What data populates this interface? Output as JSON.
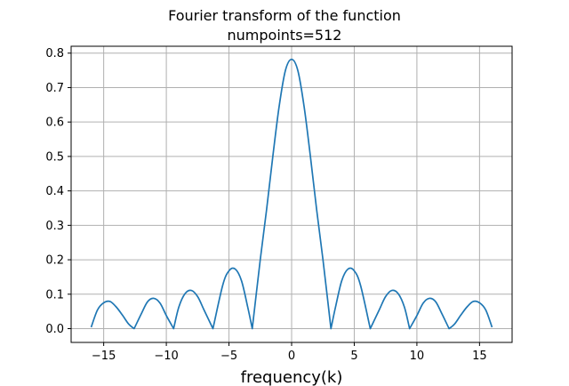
{
  "chart_data": {
    "type": "line",
    "title": "Fourier transform of the function",
    "subtitle": "numpoints=512",
    "xlabel": "frequency(k)",
    "ylabel": "",
    "xlim": [
      -17.6,
      17.6
    ],
    "ylim": [
      -0.04,
      0.82
    ],
    "xticks": [
      -15,
      -10,
      -5,
      0,
      5,
      10,
      15
    ],
    "xtick_labels": [
      "−15",
      "−10",
      "−5",
      "0",
      "5",
      "10",
      "15"
    ],
    "yticks": [
      0.0,
      0.1,
      0.2,
      0.3,
      0.4,
      0.5,
      0.6,
      0.7,
      0.8
    ],
    "ytick_labels": [
      "0.0",
      "0.1",
      "0.2",
      "0.3",
      "0.4",
      "0.5",
      "0.6",
      "0.7",
      "0.8"
    ],
    "grid": true,
    "line_color": "#1f77b4",
    "series": [
      {
        "x": [
          -16.0,
          -15.5,
          -15.0,
          -14.5,
          -14.0,
          -13.5,
          -13.0,
          -12.57,
          -12.0,
          -11.5,
          -11.0,
          -10.5,
          -10.0,
          -9.42,
          -9.0,
          -8.5,
          -8.0,
          -7.5,
          -7.0,
          -6.28,
          -5.5,
          -5.0,
          -4.5,
          -4.0,
          -3.5,
          -3.14,
          -2.5,
          -2.0,
          -1.5,
          -1.0,
          -0.5,
          0.0,
          0.5,
          1.0,
          1.5,
          2.0,
          2.5,
          3.14,
          3.5,
          4.0,
          4.5,
          5.0,
          5.5,
          6.28,
          7.0,
          7.5,
          8.0,
          8.5,
          9.0,
          9.42,
          10.0,
          10.5,
          11.0,
          11.5,
          12.0,
          12.57,
          13.0,
          13.5,
          14.0,
          14.5,
          15.0,
          15.5,
          16.0
        ],
        "y": [
          0.004,
          0.054,
          0.075,
          0.079,
          0.063,
          0.039,
          0.013,
          0.0,
          0.043,
          0.078,
          0.088,
          0.074,
          0.038,
          0.0,
          0.063,
          0.102,
          0.111,
          0.093,
          0.055,
          0.0,
          0.126,
          0.168,
          0.173,
          0.139,
          0.062,
          0.0,
          0.201,
          0.345,
          0.5,
          0.644,
          0.749,
          0.782,
          0.749,
          0.644,
          0.5,
          0.345,
          0.201,
          0.0,
          0.062,
          0.139,
          0.173,
          0.168,
          0.126,
          0.0,
          0.055,
          0.093,
          0.111,
          0.102,
          0.063,
          0.0,
          0.038,
          0.074,
          0.088,
          0.078,
          0.043,
          0.0,
          0.013,
          0.039,
          0.063,
          0.079,
          0.075,
          0.054,
          0.004
        ]
      }
    ]
  }
}
